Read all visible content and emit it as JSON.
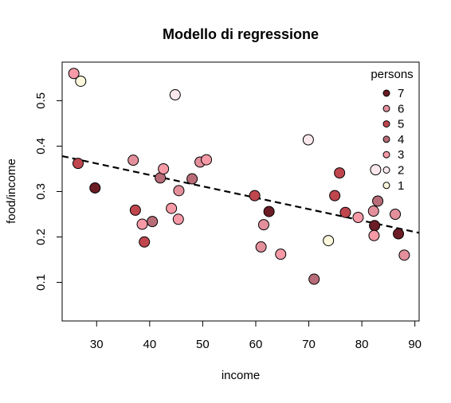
{
  "chart_data": {
    "type": "scatter",
    "title": "Modello di regressione",
    "xlabel": "income",
    "ylabel": "food/income",
    "xlim": [
      23.5,
      90.8
    ],
    "ylim": [
      0.015,
      0.585
    ],
    "xticks": [
      30,
      40,
      50,
      60,
      70,
      80,
      90
    ],
    "yticks": [
      0.1,
      0.2,
      0.3,
      0.4,
      0.5
    ],
    "grid": false,
    "legend": {
      "title": "persons",
      "placement": "top-right",
      "entries": [
        {
          "label": "7",
          "color": "#6b1c24"
        },
        {
          "label": "6",
          "color": "#e3909c"
        },
        {
          "label": "5",
          "color": "#c0464e"
        },
        {
          "label": "4",
          "color": "#b86c78"
        },
        {
          "label": "3",
          "color": "#f59aa6"
        },
        {
          "label": "2",
          "color": "#fbe8ec"
        },
        {
          "label": "1",
          "color": "#fdf8dc"
        }
      ]
    },
    "regression_line": {
      "x": [
        23.5,
        90.8
      ],
      "y": [
        0.378,
        0.209
      ],
      "style": "dashed",
      "color": "#000000"
    },
    "series": [
      {
        "name": "7",
        "color": "#6b1c24",
        "points": [
          [
            29.7,
            0.308
          ],
          [
            62.5,
            0.256
          ],
          [
            82.4,
            0.225
          ],
          [
            86.9,
            0.207
          ]
        ]
      },
      {
        "name": "6",
        "color": "#e3909c",
        "points": [
          [
            36.9,
            0.369
          ],
          [
            45.5,
            0.302
          ],
          [
            49.5,
            0.365
          ],
          [
            61.0,
            0.178
          ],
          [
            61.5,
            0.227
          ],
          [
            82.2,
            0.257
          ],
          [
            86.3,
            0.25
          ],
          [
            88.0,
            0.16
          ]
        ]
      },
      {
        "name": "5",
        "color": "#c0464e",
        "points": [
          [
            26.5,
            0.362
          ],
          [
            37.3,
            0.259
          ],
          [
            39.0,
            0.189
          ],
          [
            59.8,
            0.291
          ],
          [
            74.9,
            0.291
          ],
          [
            75.8,
            0.341
          ],
          [
            76.9,
            0.254
          ]
        ]
      },
      {
        "name": "4",
        "color": "#b86c78",
        "points": [
          [
            40.5,
            0.234
          ],
          [
            42.0,
            0.33
          ],
          [
            48.0,
            0.328
          ],
          [
            71.0,
            0.107
          ],
          [
            83.0,
            0.279
          ]
        ]
      },
      {
        "name": "3",
        "color": "#f59aa6",
        "points": [
          [
            25.7,
            0.56
          ],
          [
            38.6,
            0.228
          ],
          [
            42.6,
            0.35
          ],
          [
            44.1,
            0.263
          ],
          [
            45.4,
            0.239
          ],
          [
            50.7,
            0.37
          ],
          [
            64.7,
            0.162
          ],
          [
            79.3,
            0.243
          ],
          [
            82.3,
            0.203
          ]
        ]
      },
      {
        "name": "2",
        "color": "#fbe8ec",
        "points": [
          [
            44.8,
            0.513
          ],
          [
            69.9,
            0.414
          ],
          [
            82.6,
            0.348
          ]
        ]
      },
      {
        "name": "1",
        "color": "#fdf8dc",
        "points": [
          [
            27.0,
            0.543
          ],
          [
            73.7,
            0.192
          ]
        ]
      }
    ]
  }
}
